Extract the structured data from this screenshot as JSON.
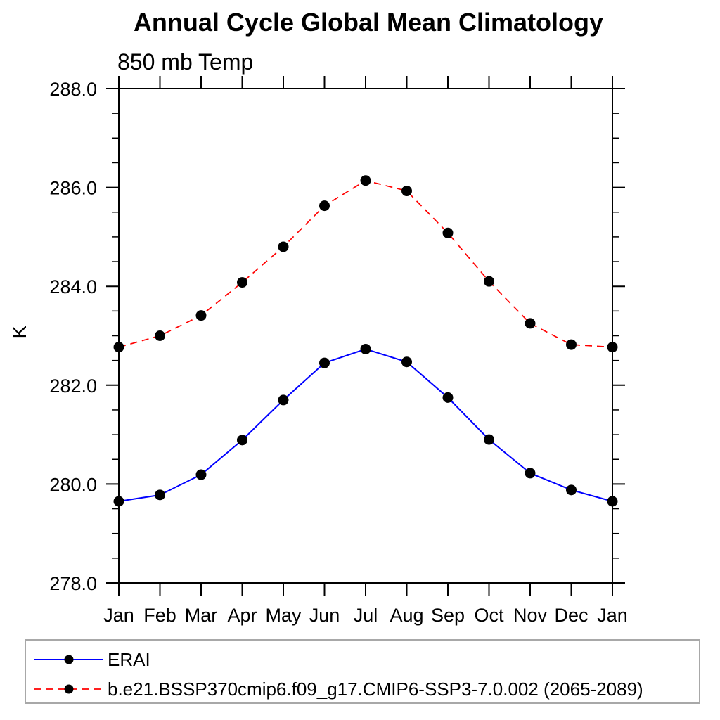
{
  "chart_data": {
    "type": "line",
    "title": "Annual Cycle Global Mean Climatology",
    "subtitle": "850 mb Temp",
    "ylabel": "K",
    "xlabel": "",
    "x_tick_labels": [
      "Jan",
      "Feb",
      "Mar",
      "Apr",
      "May",
      "Jun",
      "Jul",
      "Aug",
      "Sep",
      "Oct",
      "Nov",
      "Dec",
      "Jan"
    ],
    "ylim": [
      278.0,
      288.0
    ],
    "y_major_ticks": [
      278.0,
      280.0,
      282.0,
      284.0,
      286.0,
      288.0
    ],
    "y_minor_step": 0.5,
    "y_tick_decimals": 1,
    "grid": false,
    "axis_color": "#000000",
    "marker_color": "#000000",
    "legend_position": "bottom-left-box",
    "legend_border_color": "#a8a8a8",
    "series": [
      {
        "name": "ERAI",
        "color": "#0000ff",
        "line_style": "solid",
        "marker": "filled-circle",
        "values": [
          279.65,
          279.78,
          280.19,
          280.89,
          281.7,
          282.45,
          282.73,
          282.47,
          281.75,
          280.9,
          280.22,
          279.88,
          279.65
        ]
      },
      {
        "name": "b.e21.BSSP370cmip6.f09_g17.CMIP6-SSP3-7.0.002 (2065-2089)",
        "color": "#ff0000",
        "line_style": "dashed",
        "marker": "filled-circle",
        "values": [
          282.77,
          283.0,
          283.41,
          284.08,
          284.8,
          285.63,
          286.14,
          285.93,
          285.08,
          284.1,
          283.25,
          282.82,
          282.77
        ]
      }
    ]
  }
}
